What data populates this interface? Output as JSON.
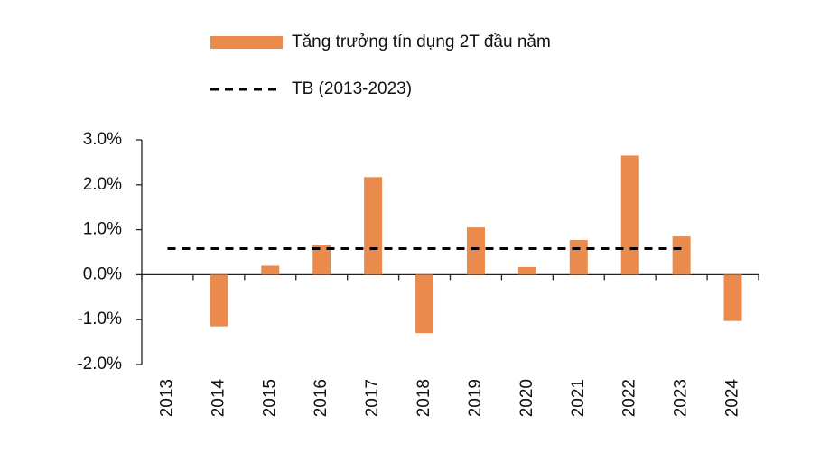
{
  "chart_data": {
    "type": "bar",
    "categories": [
      "2013",
      "2014",
      "2015",
      "2016",
      "2017",
      "2018",
      "2019",
      "2020",
      "2021",
      "2022",
      "2023",
      "2024"
    ],
    "series": [
      {
        "name": "Tăng trưởng tín dụng 2T đầu năm",
        "color": "#ea8a4c",
        "type": "bar",
        "values": [
          null,
          -1.15,
          0.2,
          0.66,
          2.17,
          -1.3,
          1.05,
          0.17,
          0.77,
          2.65,
          0.85,
          -1.03
        ]
      },
      {
        "name": "TB (2013-2023)",
        "color": "#000000",
        "type": "line",
        "dashed": true,
        "values": [
          0.58,
          0.58,
          0.58,
          0.58,
          0.58,
          0.58,
          0.58,
          0.58,
          0.58,
          0.58,
          0.58,
          null
        ]
      }
    ],
    "ylim": [
      -2,
      3
    ],
    "yticks": [
      {
        "value": -2,
        "label": "-2.0%"
      },
      {
        "value": -1,
        "label": "-1.0%"
      },
      {
        "value": 0,
        "label": "0.0%"
      },
      {
        "value": 1,
        "label": "1.0%"
      },
      {
        "value": 2,
        "label": "2.0%"
      },
      {
        "value": 3,
        "label": "3.0%"
      }
    ],
    "grid": false
  }
}
